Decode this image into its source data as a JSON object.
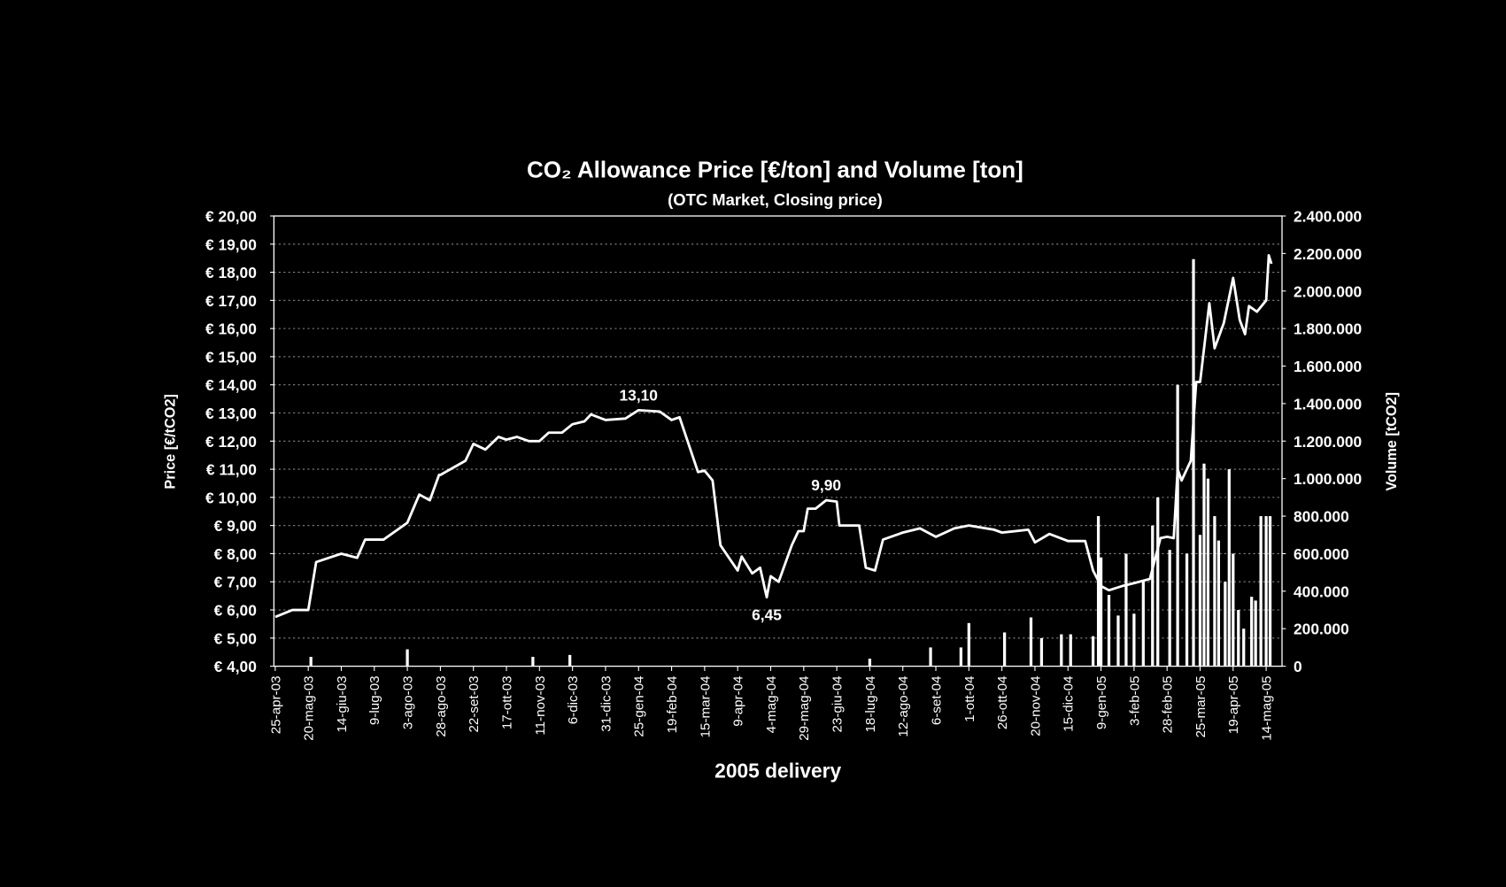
{
  "chart_data": {
    "type": "combo",
    "title": "CO₂ Allowance Price [€/ton] and Volume [ton]",
    "subtitle": "(OTC Market, Closing price)",
    "xlabel": "2005 delivery",
    "ylabel": "Price [€/tCO2]",
    "y2label": "Volume [tCO2]",
    "xlim": [
      "2003-04-24",
      "2005-05-26"
    ],
    "xticks": [
      {
        "value": "2003-04-25",
        "label": "25-apr-03"
      },
      {
        "value": "2003-05-20",
        "label": "20-mag-03"
      },
      {
        "value": "2003-06-14",
        "label": "14-giu-03"
      },
      {
        "value": "2003-07-09",
        "label": "9-lug-03"
      },
      {
        "value": "2003-08-03",
        "label": "3-ago-03"
      },
      {
        "value": "2003-08-28",
        "label": "28-ago-03"
      },
      {
        "value": "2003-09-22",
        "label": "22-set-03"
      },
      {
        "value": "2003-10-17",
        "label": "17-ott-03"
      },
      {
        "value": "2003-11-11",
        "label": "11-nov-03"
      },
      {
        "value": "2003-12-06",
        "label": "6-dic-03"
      },
      {
        "value": "2003-12-31",
        "label": "31-dic-03"
      },
      {
        "value": "2004-01-25",
        "label": "25-gen-04"
      },
      {
        "value": "2004-02-19",
        "label": "19-feb-04"
      },
      {
        "value": "2004-03-15",
        "label": "15-mar-04"
      },
      {
        "value": "2004-04-09",
        "label": "9-apr-04"
      },
      {
        "value": "2004-05-04",
        "label": "4-mag-04"
      },
      {
        "value": "2004-05-29",
        "label": "29-mag-04"
      },
      {
        "value": "2004-06-23",
        "label": "23-giu-04"
      },
      {
        "value": "2004-07-18",
        "label": "18-lug-04"
      },
      {
        "value": "2004-08-12",
        "label": "12-ago-04"
      },
      {
        "value": "2004-09-06",
        "label": "6-set-04"
      },
      {
        "value": "2004-10-01",
        "label": "1-ott-04"
      },
      {
        "value": "2004-10-26",
        "label": "26-ott-04"
      },
      {
        "value": "2004-11-20",
        "label": "20-nov-04"
      },
      {
        "value": "2004-12-15",
        "label": "15-dic-04"
      },
      {
        "value": "2005-01-09",
        "label": "9-gen-05"
      },
      {
        "value": "2005-02-03",
        "label": "3-feb-05"
      },
      {
        "value": "2005-02-28",
        "label": "28-feb-05"
      },
      {
        "value": "2005-03-25",
        "label": "25-mar-05"
      },
      {
        "value": "2005-04-19",
        "label": "19-apr-05"
      },
      {
        "value": "2005-05-14",
        "label": "14-mag-05"
      }
    ],
    "ylim": [
      4,
      20
    ],
    "yticks": [
      {
        "value": 4,
        "label": "€ 4,00"
      },
      {
        "value": 5,
        "label": "€ 5,00"
      },
      {
        "value": 6,
        "label": "€ 6,00"
      },
      {
        "value": 7,
        "label": "€ 7,00"
      },
      {
        "value": 8,
        "label": "€ 8,00"
      },
      {
        "value": 9,
        "label": "€ 9,00"
      },
      {
        "value": 10,
        "label": "€ 10,00"
      },
      {
        "value": 11,
        "label": "€ 11,00"
      },
      {
        "value": 12,
        "label": "€ 12,00"
      },
      {
        "value": 13,
        "label": "€ 13,00"
      },
      {
        "value": 14,
        "label": "€ 14,00"
      },
      {
        "value": 15,
        "label": "€ 15,00"
      },
      {
        "value": 16,
        "label": "€ 16,00"
      },
      {
        "value": 17,
        "label": "€ 17,00"
      },
      {
        "value": 18,
        "label": "€ 18,00"
      },
      {
        "value": 19,
        "label": "€ 19,00"
      },
      {
        "value": 20,
        "label": "€ 20,00"
      }
    ],
    "y2lim": [
      0,
      2400000
    ],
    "y2ticks": [
      0,
      {
        "value": 200000,
        "label": "200.000"
      },
      {
        "value": 400000,
        "label": "400.000"
      },
      {
        "value": 600000,
        "label": "600.000"
      },
      {
        "value": 800000,
        "label": "800.000"
      },
      {
        "value": 1000000,
        "label": "1.000.000"
      },
      {
        "value": 1200000,
        "label": "1.200.000"
      },
      {
        "value": 1400000,
        "label": "1.400.000"
      },
      {
        "value": 1600000,
        "label": "1.600.000"
      },
      {
        "value": 1800000,
        "label": "1.800.000"
      },
      {
        "value": 2000000,
        "label": "2.000.000"
      },
      {
        "value": 2200000,
        "label": "2.200.000"
      },
      {
        "value": 2400000,
        "label": "2.400.000"
      }
    ],
    "grid": true,
    "series": [
      {
        "type": "bar",
        "axis": "y2",
        "color": "#ffffff",
        "x": [
          "2003-05-22",
          "2003-08-03",
          "2003-11-06",
          "2003-12-04",
          "2004-07-18",
          "2004-09-02",
          "2004-09-25",
          "2004-10-01",
          "2004-10-28",
          "2004-11-17",
          "2004-11-25",
          "2004-12-10",
          "2004-12-17",
          "2005-01-03",
          "2005-01-07",
          "2005-01-09",
          "2005-01-15",
          "2005-01-22",
          "2005-01-28",
          "2005-02-03",
          "2005-02-10",
          "2005-02-17",
          "2005-02-21",
          "2005-03-02",
          "2005-03-08",
          "2005-03-15",
          "2005-03-20",
          "2005-03-25",
          "2005-03-28",
          "2005-03-31",
          "2005-04-05",
          "2005-04-08",
          "2005-04-13",
          "2005-04-16",
          "2005-04-19",
          "2005-04-23",
          "2005-04-27",
          "2005-05-03",
          "2005-05-06",
          "2005-05-10",
          "2005-05-14",
          "2005-05-17"
        ],
        "values": [
          50000,
          90000,
          50000,
          60000,
          40000,
          100000,
          100000,
          230000,
          180000,
          260000,
          150000,
          170000,
          170000,
          160000,
          800000,
          580000,
          380000,
          270000,
          600000,
          280000,
          450000,
          750000,
          900000,
          620000,
          1500000,
          600000,
          2170000,
          700000,
          1080000,
          1000000,
          800000,
          670000,
          450000,
          1050000,
          600000,
          300000,
          200000,
          370000,
          350000,
          800000,
          800000,
          800000
        ]
      },
      {
        "type": "line",
        "color": "#ffffff",
        "x": [
          "2003-04-25",
          "2003-05-08",
          "2003-05-20",
          "2003-05-26",
          "2003-06-14",
          "2003-06-26",
          "2003-07-02",
          "2003-07-09",
          "2003-07-16",
          "2003-08-03",
          "2003-08-12",
          "2003-08-20",
          "2003-08-27",
          "2003-08-28",
          "2003-09-16",
          "2003-09-22",
          "2003-10-01",
          "2003-10-11",
          "2003-10-17",
          "2003-10-25",
          "2003-11-03",
          "2003-11-11",
          "2003-11-18",
          "2003-11-28",
          "2003-12-06",
          "2003-12-15",
          "2003-12-20",
          "2003-12-31",
          "2004-01-15",
          "2004-01-25",
          "2004-02-10",
          "2004-02-19",
          "2004-02-25",
          "2004-03-10",
          "2004-03-15",
          "2004-03-21",
          "2004-03-27",
          "2004-04-09",
          "2004-04-12",
          "2004-04-20",
          "2004-04-26",
          "2004-05-01",
          "2004-05-04",
          "2004-05-10",
          "2004-05-20",
          "2004-05-25",
          "2004-05-29",
          "2004-06-01",
          "2004-06-07",
          "2004-06-15",
          "2004-06-23",
          "2004-06-25",
          "2004-07-10",
          "2004-07-15",
          "2004-07-22",
          "2004-07-28",
          "2004-08-12",
          "2004-08-25",
          "2004-09-06",
          "2004-09-20",
          "2004-10-01",
          "2004-10-20",
          "2004-10-26",
          "2004-11-15",
          "2004-11-20",
          "2004-12-01",
          "2004-12-15",
          "2004-12-28",
          "2005-01-03",
          "2005-01-09",
          "2005-01-15",
          "2005-01-25",
          "2005-02-03",
          "2005-02-15",
          "2005-02-23",
          "2005-02-28",
          "2005-03-05",
          "2005-03-08",
          "2005-03-11",
          "2005-03-18",
          "2005-03-22",
          "2005-03-25",
          "2005-04-01",
          "2005-04-05",
          "2005-04-12",
          "2005-04-19",
          "2005-04-24",
          "2005-04-28",
          "2005-05-01",
          "2005-05-07",
          "2005-05-14",
          "2005-05-16",
          "2005-05-18"
        ],
        "values": [
          5.75,
          6.0,
          6.0,
          7.7,
          8.0,
          7.85,
          8.5,
          8.5,
          8.5,
          9.1,
          10.1,
          9.9,
          10.8,
          10.8,
          11.3,
          11.9,
          11.7,
          12.15,
          12.05,
          12.15,
          12.0,
          12.0,
          12.3,
          12.3,
          12.6,
          12.7,
          12.95,
          12.75,
          12.8,
          13.1,
          13.05,
          12.75,
          12.85,
          10.9,
          10.95,
          10.6,
          8.3,
          7.4,
          7.9,
          7.3,
          7.5,
          6.45,
          7.2,
          7.0,
          8.3,
          8.8,
          8.8,
          9.6,
          9.6,
          9.9,
          9.85,
          9.0,
          9.0,
          7.5,
          7.4,
          8.5,
          8.75,
          8.9,
          8.6,
          8.9,
          9.0,
          8.85,
          8.75,
          8.85,
          8.4,
          8.7,
          8.45,
          8.45,
          7.4,
          6.85,
          6.7,
          6.85,
          6.95,
          7.1,
          8.55,
          8.6,
          8.55,
          11.0,
          10.6,
          11.3,
          14.1,
          14.1,
          16.9,
          15.3,
          16.2,
          17.8,
          16.3,
          15.8,
          16.8,
          16.6,
          17.0,
          18.6,
          18.3
        ]
      }
    ],
    "annotations": [
      {
        "text": "13,10",
        "x": "2004-01-25",
        "value": 13.1
      },
      {
        "text": "9,90",
        "x": "2004-06-15",
        "value": 9.9
      },
      {
        "text": "6,45",
        "x": "2004-05-01",
        "value": 6.45,
        "below": true
      }
    ]
  }
}
